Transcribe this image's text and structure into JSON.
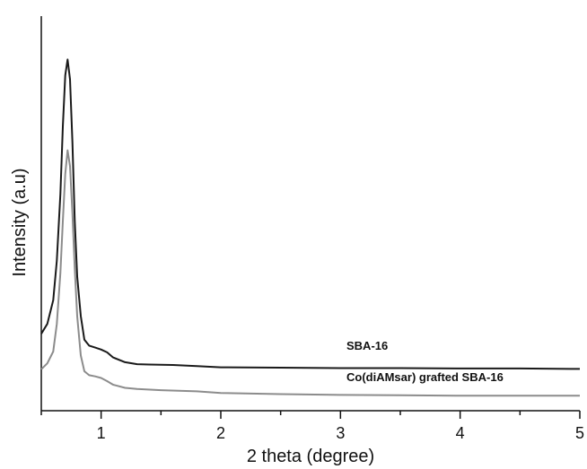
{
  "chart_data": {
    "type": "line",
    "xlabel": "2 theta (degree)",
    "ylabel": "Intensity (a.u)",
    "xlim": [
      0.5,
      5
    ],
    "ylim": [
      0,
      100
    ],
    "xticks": [
      1,
      2,
      3,
      4,
      5
    ],
    "xtick_labels": [
      "1",
      "2",
      "3",
      "4",
      "5"
    ],
    "minor_xtick_step": 0.5,
    "y_tick_labels_shown": false,
    "grid": false,
    "series": [
      {
        "name": "SBA-16",
        "color": "#1a1a1a",
        "x": [
          0.5,
          0.55,
          0.6,
          0.63,
          0.66,
          0.68,
          0.7,
          0.72,
          0.74,
          0.76,
          0.78,
          0.8,
          0.83,
          0.86,
          0.9,
          0.95,
          1.0,
          1.05,
          1.1,
          1.2,
          1.3,
          1.4,
          1.6,
          1.8,
          2.0,
          2.5,
          3.0,
          3.5,
          4.0,
          4.5,
          5.0
        ],
        "y": [
          19.5,
          22,
          28,
          38,
          55,
          72,
          85,
          89,
          84,
          68,
          48,
          34,
          24,
          18,
          16.5,
          16,
          15.5,
          14.8,
          13.5,
          12.3,
          11.8,
          11.7,
          11.6,
          11.3,
          11.0,
          10.9,
          10.8,
          10.8,
          10.7,
          10.7,
          10.6
        ]
      },
      {
        "name": "Co(diAMsar) grafted SBA-16",
        "color": "#8c8c8c",
        "x": [
          0.5,
          0.55,
          0.6,
          0.63,
          0.66,
          0.68,
          0.7,
          0.72,
          0.74,
          0.76,
          0.78,
          0.8,
          0.83,
          0.86,
          0.9,
          0.95,
          1.0,
          1.05,
          1.1,
          1.2,
          1.3,
          1.5,
          1.8,
          2.0,
          2.5,
          3.0,
          3.5,
          4.0,
          4.5,
          5.0
        ],
        "y": [
          10.5,
          12,
          15,
          22,
          35,
          48,
          60,
          66,
          62,
          50,
          36,
          24,
          14,
          10,
          9.0,
          8.7,
          8.3,
          7.5,
          6.6,
          5.8,
          5.5,
          5.2,
          4.9,
          4.5,
          4.2,
          4.0,
          3.9,
          3.8,
          3.8,
          3.8
        ]
      }
    ],
    "annotations": [
      {
        "text": "SBA-16",
        "x": 3.05,
        "y": 15.5
      },
      {
        "text": "Co(diAMsar) grafted SBA-16",
        "x": 3.05,
        "y": 7.5
      }
    ]
  }
}
